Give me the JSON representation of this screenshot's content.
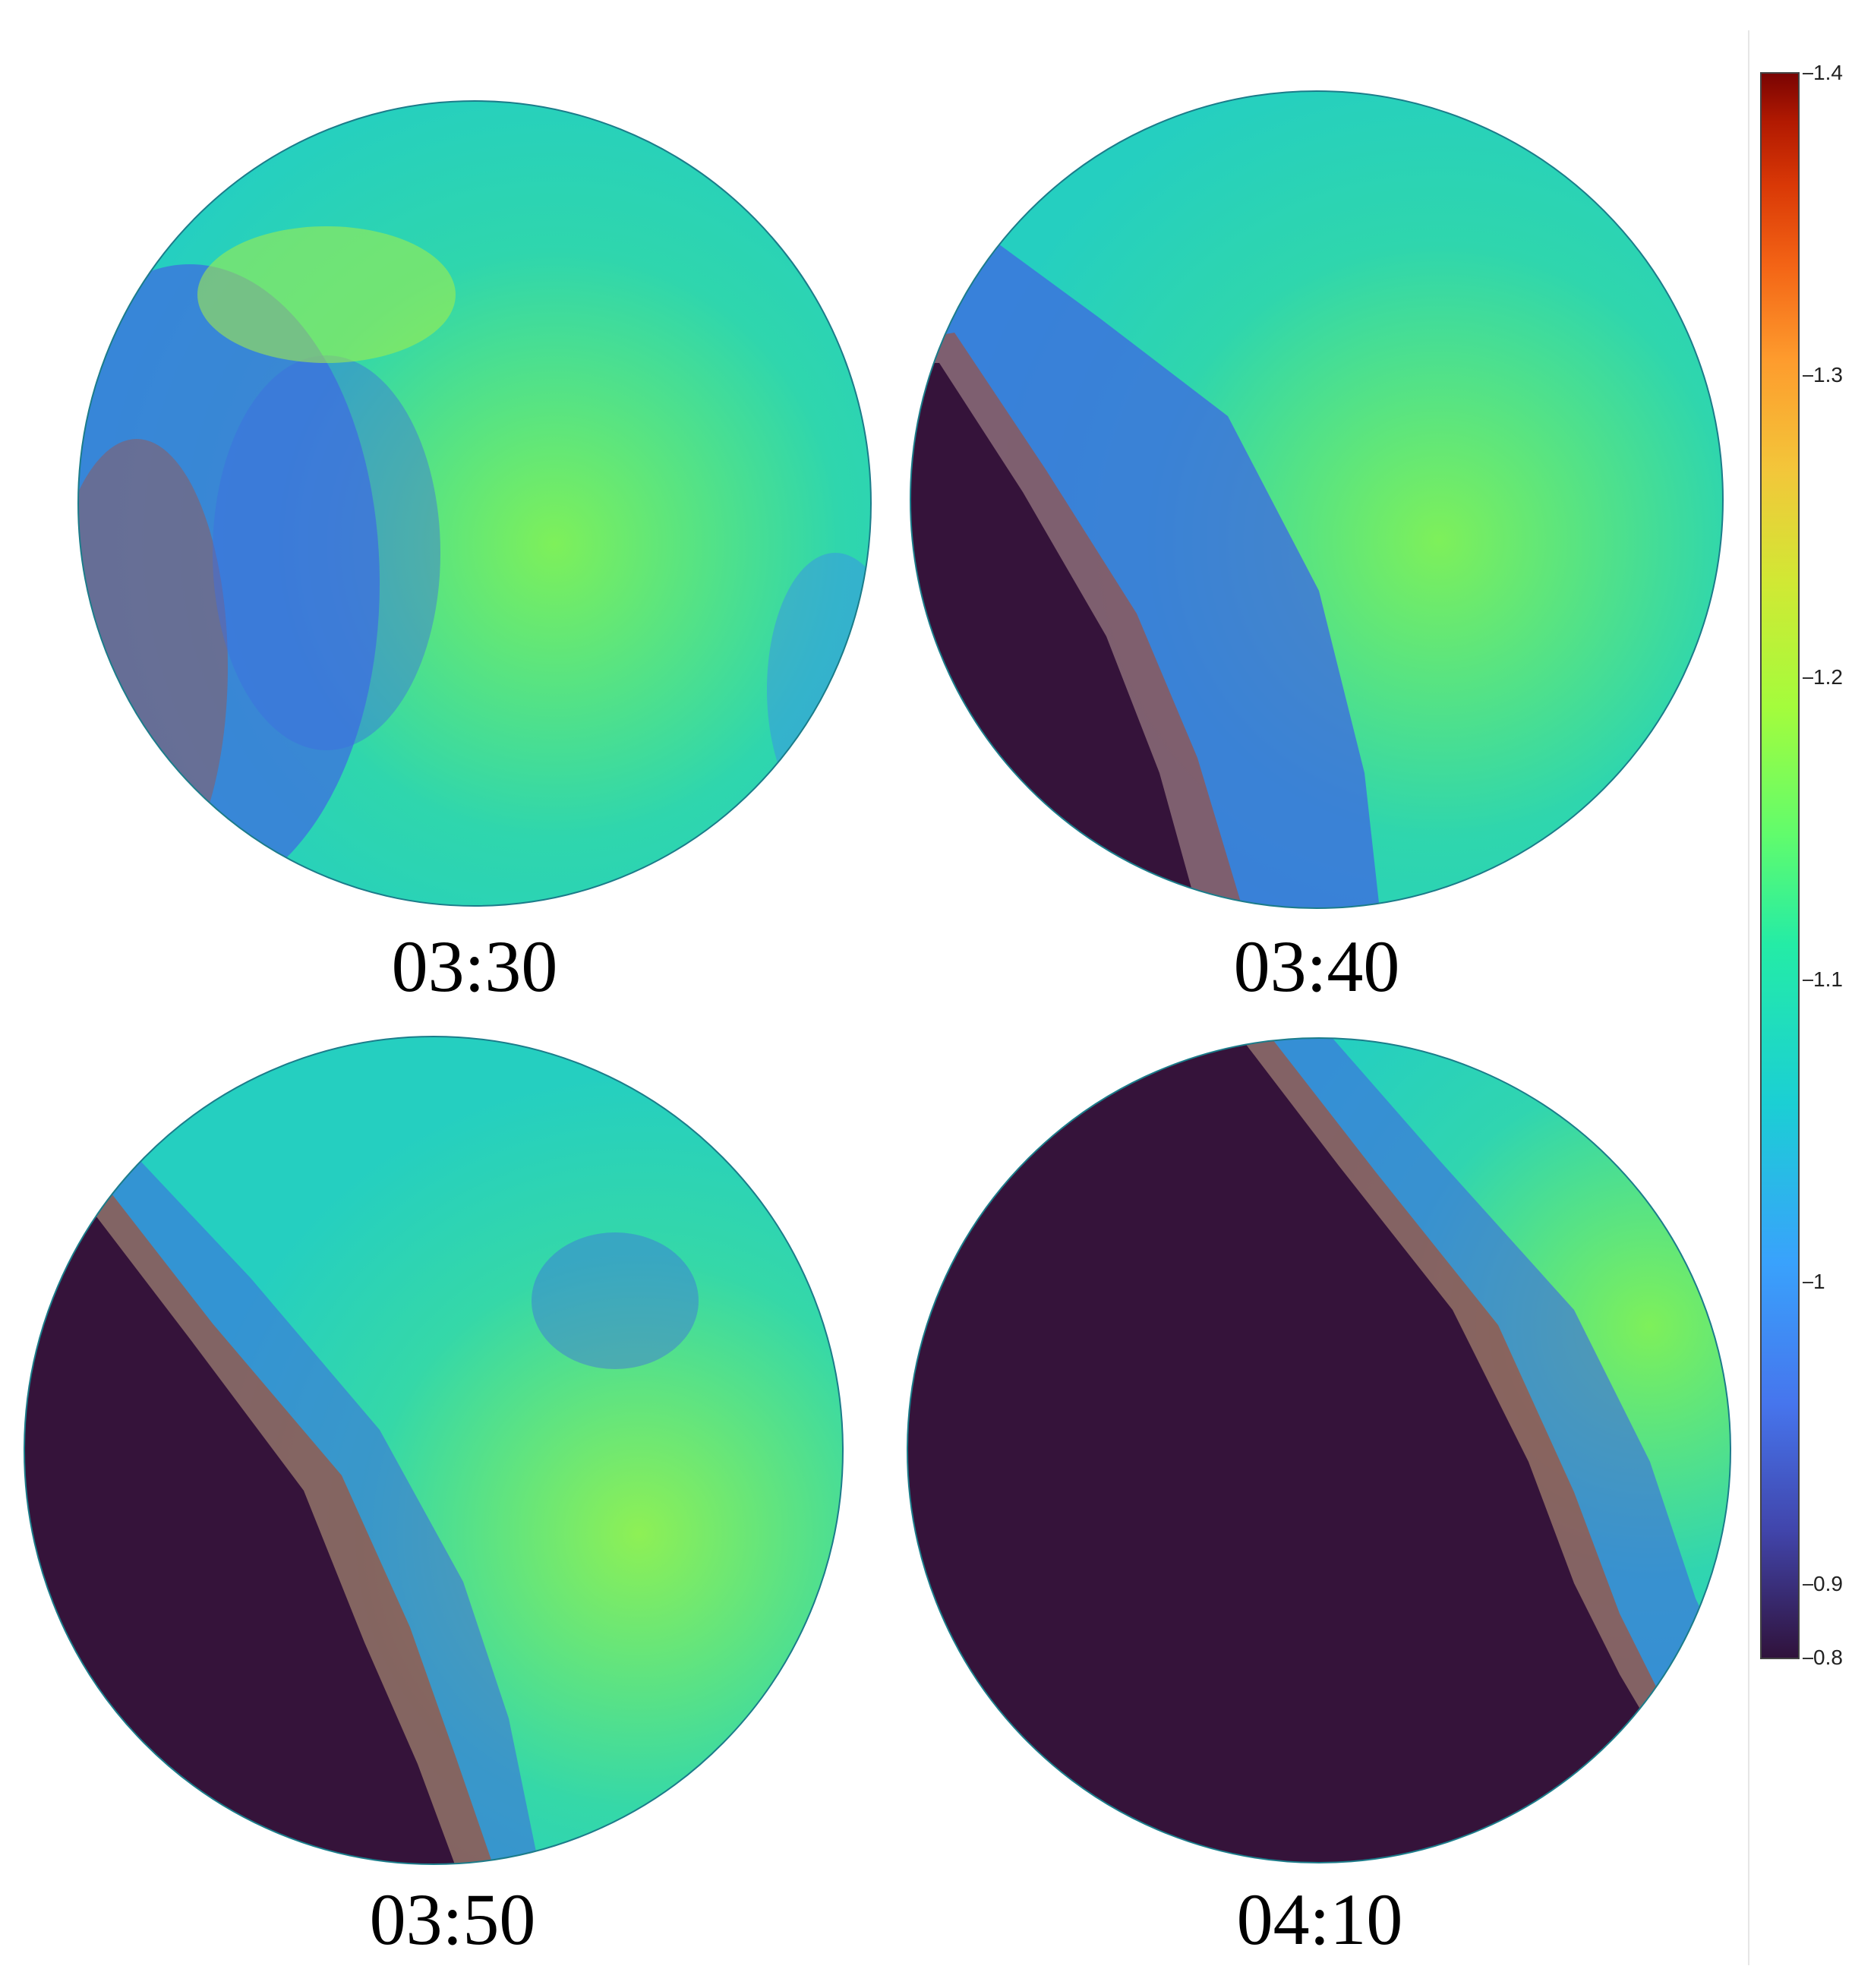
{
  "panels": [
    {
      "label": "03:30",
      "terminator": "none"
    },
    {
      "label": "03:40",
      "terminator": "small"
    },
    {
      "label": "03:50",
      "terminator": "medium"
    },
    {
      "label": "04:10",
      "terminator": "large"
    }
  ],
  "colorbar": {
    "colormap": "turbo",
    "min": 0.8,
    "max": 1.4,
    "ticks": [
      "1.4",
      "1.3",
      "1.2",
      "1.1",
      "1",
      "0.9",
      "0.8"
    ]
  },
  "colors": {
    "dark_region": "#35133a",
    "cyan_base": "#25cfc0",
    "green_high": "#7ef05a",
    "blue_low": "#3d6de0"
  }
}
